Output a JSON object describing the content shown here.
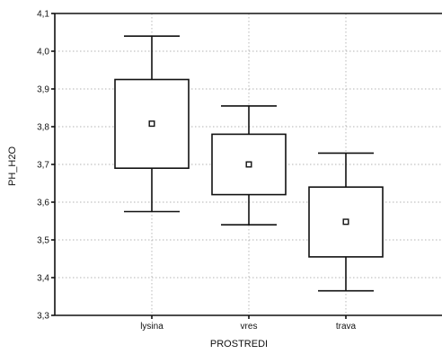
{
  "chart_data": {
    "type": "box",
    "xlabel": "PROSTREDI",
    "ylabel": "PH_H2O",
    "ylim": [
      3.3,
      4.1
    ],
    "yticks": [
      "3,3",
      "3,4",
      "3,5",
      "3,6",
      "3,7",
      "3,8",
      "3,9",
      "4,0",
      "4,1"
    ],
    "grid": true,
    "categories": [
      "lysina",
      "vres",
      "trava"
    ],
    "boxes": [
      {
        "category": "lysina",
        "whisker_low": 3.575,
        "box_low": 3.69,
        "center": 3.808,
        "box_high": 3.925,
        "whisker_high": 4.04
      },
      {
        "category": "vres",
        "whisker_low": 3.54,
        "box_low": 3.62,
        "center": 3.7,
        "box_high": 3.78,
        "whisker_high": 3.855
      },
      {
        "category": "trava",
        "whisker_low": 3.365,
        "box_low": 3.455,
        "center": 3.548,
        "box_high": 3.64,
        "whisker_high": 3.73
      }
    ]
  }
}
